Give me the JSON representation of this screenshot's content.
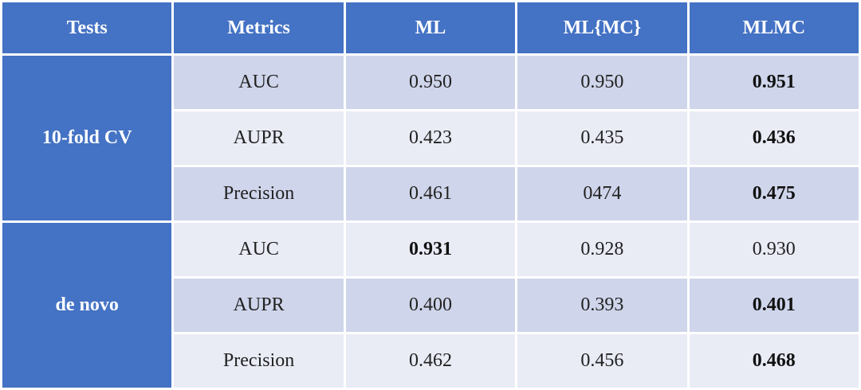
{
  "table": {
    "headers": [
      "Tests",
      "Metrics",
      "ML",
      "ML{MC}",
      "MLMC"
    ],
    "groups": [
      {
        "label": "10-fold CV",
        "rows": [
          {
            "metric": "AUC",
            "ml": "0.950",
            "ml_mc": "0.950",
            "mlmc": "0.951",
            "best": "mlmc",
            "shade": "dark"
          },
          {
            "metric": "AUPR",
            "ml": "0.423",
            "ml_mc": "0.435",
            "mlmc": "0.436",
            "best": "mlmc",
            "shade": "light"
          },
          {
            "metric": "Precision",
            "ml": "0.461",
            "ml_mc": "0474",
            "mlmc": "0.475",
            "best": "mlmc",
            "shade": "dark"
          }
        ]
      },
      {
        "label": "de novo",
        "rows": [
          {
            "metric": "AUC",
            "ml": "0.931",
            "ml_mc": "0.928",
            "mlmc": "0.930",
            "best": "ml",
            "shade": "light"
          },
          {
            "metric": "AUPR",
            "ml": "0.400",
            "ml_mc": "0.393",
            "mlmc": "0.401",
            "best": "mlmc",
            "shade": "dark"
          },
          {
            "metric": "Precision",
            "ml": "0.462",
            "ml_mc": "0.456",
            "mlmc": "0.468",
            "best": "mlmc",
            "shade": "light"
          }
        ]
      }
    ],
    "colors": {
      "header_bg": "#4472c4",
      "row_dark": "#cfd5ea",
      "row_light": "#e9ebf5",
      "header_text": "#ffffff"
    }
  }
}
